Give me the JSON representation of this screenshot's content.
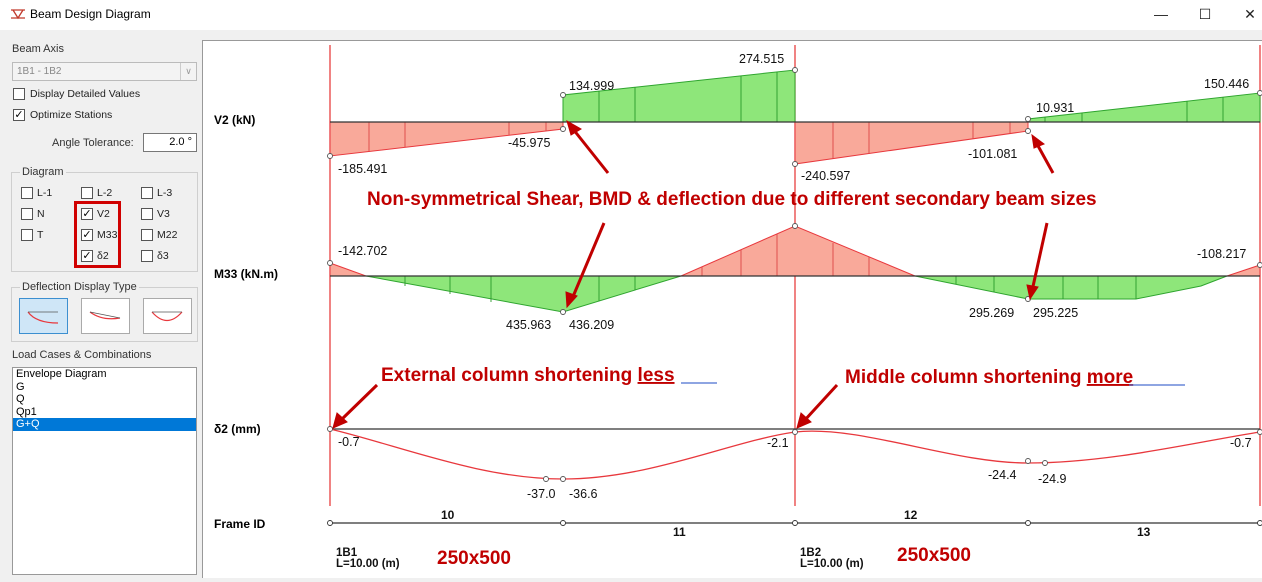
{
  "window": {
    "title": "Beam Design Diagram",
    "minimize": "—",
    "maximize": "☐",
    "close": "✕"
  },
  "sidebar": {
    "beam_axis_label": "Beam Axis",
    "beam_axis_value": "1B1 - 1B2",
    "display_detailed": {
      "label": "Display Detailed Values",
      "checked": false
    },
    "optimize_stations": {
      "label": "Optimize Stations",
      "checked": true
    },
    "angle_tolerance_label": "Angle Tolerance:",
    "angle_tolerance_value": "2.0 °",
    "diagram_group_label": "Diagram",
    "diagram_items": [
      {
        "label": "L-1",
        "checked": false
      },
      {
        "label": "L-2",
        "checked": false
      },
      {
        "label": "L-3",
        "checked": false
      },
      {
        "label": "N",
        "checked": false
      },
      {
        "label": "V2",
        "checked": true
      },
      {
        "label": "V3",
        "checked": false
      },
      {
        "label": "T",
        "checked": false
      },
      {
        "label": "M33",
        "checked": true
      },
      {
        "label": "M22",
        "checked": false
      },
      {
        "label": "δ2",
        "checked": true
      },
      {
        "label": "δ3",
        "checked": false
      }
    ],
    "deflection_group_label": "Deflection Display Type",
    "load_cases_label": "Load Cases & Combinations",
    "load_cases": [
      "Envelope Diagram",
      "G",
      "Q",
      "Qp1",
      "G+Q"
    ],
    "selected_load_case": "G+Q"
  },
  "diagram": {
    "row_labels": {
      "v2": "V2 (kN)",
      "m33": "M33 (kN.m)",
      "d2": "δ2 (mm)",
      "frame": "Frame ID"
    },
    "v2_values": [
      "-185.491",
      "-45.975",
      "134.999",
      "274.515",
      "-240.597",
      "-101.081",
      "10.931",
      "150.446"
    ],
    "m33_values": [
      "-142.702",
      "435.963",
      "436.209",
      "295.269",
      "295.225",
      "-108.217"
    ],
    "d2_values": [
      "-0.7",
      "-37.0",
      "-36.6",
      "-2.1",
      "-24.4",
      "-24.9",
      "-0.7"
    ],
    "frame_ids": [
      "10",
      "11",
      "12",
      "13"
    ],
    "beams": [
      {
        "name": "1B1",
        "length": "L=10.00 (m)",
        "size": "250x500"
      },
      {
        "name": "1B2",
        "length": "L=10.00 (m)",
        "size": "250x500"
      }
    ],
    "annotations": {
      "main": "Non-symmetrical Shear, BMD & deflection due to different secondary beam sizes",
      "external_prefix": "External column shortening ",
      "external_emph": "less",
      "middle_prefix": "Middle column shortening ",
      "middle_emph": "more"
    },
    "colors": {
      "negative_fill": "#f9a99a",
      "positive_fill": "#8ee67a",
      "annotation": "#c00000",
      "curve": "#e8383d"
    }
  }
}
